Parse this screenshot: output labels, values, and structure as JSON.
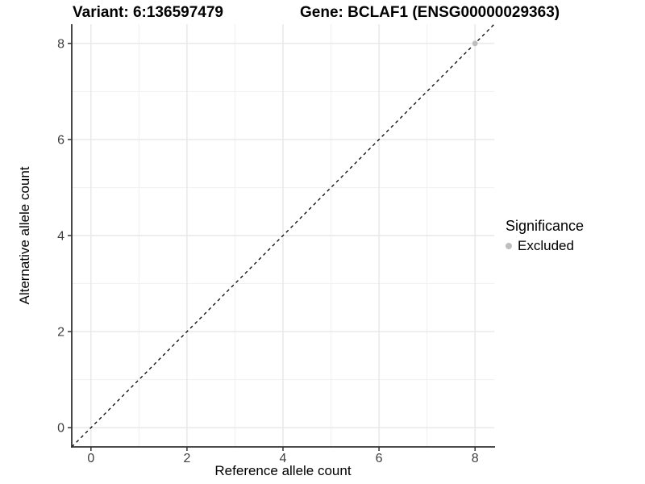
{
  "titles": {
    "variant": "Variant: 6:136597479",
    "gene": "Gene: BCLAF1 (ENSG00000029363)"
  },
  "axes": {
    "x_title": "Reference allele count",
    "y_title": "Alternative allele count"
  },
  "legend": {
    "title": "Significance",
    "position": "right",
    "entries": [
      {
        "label": "Excluded",
        "color": "#bebebe"
      }
    ]
  },
  "chart_data": {
    "type": "scatter",
    "title": "Variant: 6:136597479    Gene: BCLAF1 (ENSG00000029363)",
    "xlabel": "Reference allele count",
    "ylabel": "Alternative allele count",
    "xlim": [
      -0.4,
      8.4
    ],
    "ylim": [
      -0.4,
      8.4
    ],
    "x_ticks": [
      0,
      2,
      4,
      6,
      8
    ],
    "y_ticks": [
      0,
      2,
      4,
      6,
      8
    ],
    "x_minor": [
      1,
      3,
      5,
      7
    ],
    "y_minor": [
      1,
      3,
      5,
      7
    ],
    "grid": true,
    "series": [
      {
        "name": "Excluded",
        "color": "#bebebe",
        "points": [
          {
            "x": 8,
            "y": 8
          }
        ]
      }
    ],
    "reference_line": {
      "type": "identity",
      "equation": "y = x",
      "style": "dashed",
      "color": "#000000"
    },
    "colors": {
      "axis_line": "#333333",
      "tick_text": "#404040",
      "grid_major": "#e7e7e7",
      "grid_minor": "#f1f1f1",
      "background": "#ffffff"
    }
  }
}
